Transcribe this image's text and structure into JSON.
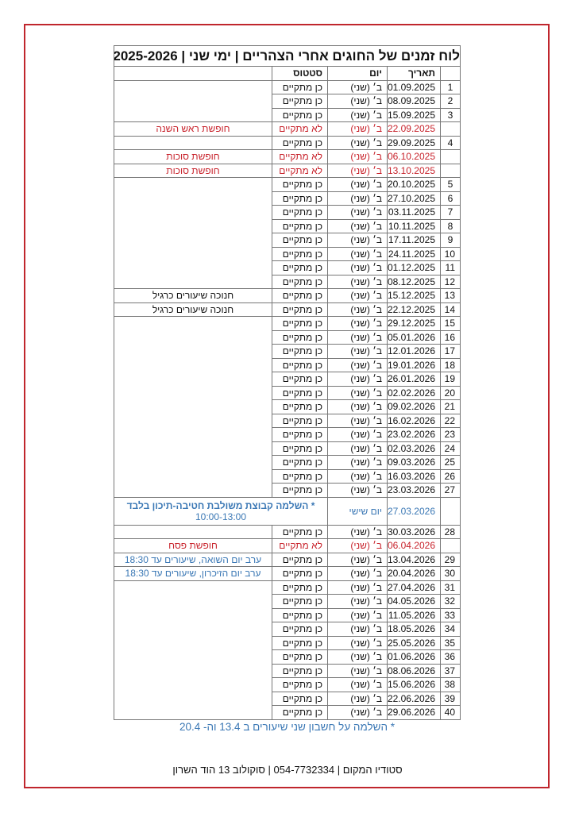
{
  "title": "לוח זמנים של החוגים אחרי הצהריים | ימי שני | 2025-2026",
  "headers": {
    "num": "",
    "date": "תאריך",
    "day": "יום",
    "status": "סטטוס",
    "notes": ""
  },
  "colors": {
    "cancelled": "#c8232c",
    "info": "#3b78b5",
    "frame": "#c0262d"
  },
  "rows": [
    {
      "num": "1",
      "date": "01.09.2025",
      "day": "ב׳ (שני)",
      "status": "כן מתקיים",
      "note": ""
    },
    {
      "num": "2",
      "date": "08.09.2025",
      "day": "ב׳ (שני)",
      "status": "כן מתקיים",
      "note": ""
    },
    {
      "num": "3",
      "date": "15.09.2025",
      "day": "ב׳ (שני)",
      "status": "כן מתקיים",
      "note": ""
    },
    {
      "num": "",
      "date": "22.09.2025",
      "day": "ב׳ (שני)",
      "status": "לא מתקיים",
      "note": "חופשת ראש השנה",
      "type": "cancelled"
    },
    {
      "num": "4",
      "date": "29.09.2025",
      "day": "ב׳ (שני)",
      "status": "כן מתקיים",
      "note": ""
    },
    {
      "num": "",
      "date": "06.10.2025",
      "day": "ב׳ (שני)",
      "status": "לא מתקיים",
      "note": "חופשת סוכות",
      "type": "cancelled"
    },
    {
      "num": "",
      "date": "13.10.2025",
      "day": "ב׳ (שני)",
      "status": "לא מתקיים",
      "note": "חופשת סוכות",
      "type": "cancelled"
    },
    {
      "num": "5",
      "date": "20.10.2025",
      "day": "ב׳ (שני)",
      "status": "כן מתקיים",
      "note": ""
    },
    {
      "num": "6",
      "date": "27.10.2025",
      "day": "ב׳ (שני)",
      "status": "כן מתקיים",
      "note": ""
    },
    {
      "num": "7",
      "date": "03.11.2025",
      "day": "ב׳ (שני)",
      "status": "כן מתקיים",
      "note": ""
    },
    {
      "num": "8",
      "date": "10.11.2025",
      "day": "ב׳ (שני)",
      "status": "כן מתקיים",
      "note": ""
    },
    {
      "num": "9",
      "date": "17.11.2025",
      "day": "ב׳ (שני)",
      "status": "כן מתקיים",
      "note": ""
    },
    {
      "num": "10",
      "date": "24.11.2025",
      "day": "ב׳ (שני)",
      "status": "כן מתקיים",
      "note": ""
    },
    {
      "num": "11",
      "date": "01.12.2025",
      "day": "ב׳ (שני)",
      "status": "כן מתקיים",
      "note": ""
    },
    {
      "num": "12",
      "date": "08.12.2025",
      "day": "ב׳ (שני)",
      "status": "כן מתקיים",
      "note": ""
    },
    {
      "num": "13",
      "date": "15.12.2025",
      "day": "ב׳ (שני)",
      "status": "כן מתקיים",
      "note": "חנוכה שיעורים כרגיל"
    },
    {
      "num": "14",
      "date": "22.12.2025",
      "day": "ב׳ (שני)",
      "status": "כן מתקיים",
      "note": "חנוכה שיעורים כרגיל"
    },
    {
      "num": "15",
      "date": "29.12.2025",
      "day": "ב׳ (שני)",
      "status": "כן מתקיים",
      "note": ""
    },
    {
      "num": "16",
      "date": "05.01.2026",
      "day": "ב׳ (שני)",
      "status": "כן מתקיים",
      "note": ""
    },
    {
      "num": "17",
      "date": "12.01.2026",
      "day": "ב׳ (שני)",
      "status": "כן מתקיים",
      "note": ""
    },
    {
      "num": "18",
      "date": "19.01.2026",
      "day": "ב׳ (שני)",
      "status": "כן מתקיים",
      "note": ""
    },
    {
      "num": "19",
      "date": "26.01.2026",
      "day": "ב׳ (שני)",
      "status": "כן מתקיים",
      "note": ""
    },
    {
      "num": "20",
      "date": "02.02.2026",
      "day": "ב׳ (שני)",
      "status": "כן מתקיים",
      "note": ""
    },
    {
      "num": "21",
      "date": "09.02.2026",
      "day": "ב׳ (שני)",
      "status": "כן מתקיים",
      "note": ""
    },
    {
      "num": "22",
      "date": "16.02.2026",
      "day": "ב׳ (שני)",
      "status": "כן מתקיים",
      "note": ""
    },
    {
      "num": "23",
      "date": "23.02.2026",
      "day": "ב׳ (שני)",
      "status": "כן מתקיים",
      "note": ""
    },
    {
      "num": "24",
      "date": "02.03.2026",
      "day": "ב׳ (שני)",
      "status": "כן מתקיים",
      "note": ""
    },
    {
      "num": "25",
      "date": "09.03.2026",
      "day": "ב׳ (שני)",
      "status": "כן מתקיים",
      "note": ""
    },
    {
      "num": "26",
      "date": "16.03.2026",
      "day": "ב׳ (שני)",
      "status": "כן מתקיים",
      "note": ""
    },
    {
      "num": "27",
      "date": "23.03.2026",
      "day": "ב׳ (שני)",
      "status": "כן מתקיים",
      "note": ""
    },
    {
      "num": "",
      "date": "27.03.2026",
      "day": "יום שישי",
      "status": "",
      "note": "* השלמה קבוצת משולבת חטיבה-תיכון בלבד",
      "note_time": "10:00-13:00",
      "type": "special"
    },
    {
      "num": "28",
      "date": "30.03.2026",
      "day": "ב׳ (שני)",
      "status": "כן מתקיים",
      "note": ""
    },
    {
      "num": "",
      "date": "06.04.2026",
      "day": "ב׳ (שני)",
      "status": "לא מתקיים",
      "note": "חופשת פסח",
      "type": "cancelled"
    },
    {
      "num": "29",
      "date": "13.04.2026",
      "day": "ב׳ (שני)",
      "status": "כן מתקיים",
      "note": "ערב יום השואה, שיעורים עד 18:30",
      "type": "info"
    },
    {
      "num": "30",
      "date": "20.04.2026",
      "day": "ב׳ (שני)",
      "status": "כן מתקיים",
      "note": "ערב יום הזיכרון, שיעורים עד 18:30",
      "type": "info"
    },
    {
      "num": "31",
      "date": "27.04.2026",
      "day": "ב׳ (שני)",
      "status": "כן מתקיים",
      "note": ""
    },
    {
      "num": "32",
      "date": "04.05.2026",
      "day": "ב׳ (שני)",
      "status": "כן מתקיים",
      "note": ""
    },
    {
      "num": "33",
      "date": "11.05.2026",
      "day": "ב׳ (שני)",
      "status": "כן מתקיים",
      "note": ""
    },
    {
      "num": "34",
      "date": "18.05.2026",
      "day": "ב׳ (שני)",
      "status": "כן מתקיים",
      "note": ""
    },
    {
      "num": "35",
      "date": "25.05.2026",
      "day": "ב׳ (שני)",
      "status": "כן מתקיים",
      "note": ""
    },
    {
      "num": "36",
      "date": "01.06.2026",
      "day": "ב׳ (שני)",
      "status": "כן מתקיים",
      "note": ""
    },
    {
      "num": "37",
      "date": "08.06.2026",
      "day": "ב׳ (שני)",
      "status": "כן מתקיים",
      "note": ""
    },
    {
      "num": "38",
      "date": "15.06.2026",
      "day": "ב׳ (שני)",
      "status": "כן מתקיים",
      "note": ""
    },
    {
      "num": "39",
      "date": "22.06.2026",
      "day": "ב׳ (שני)",
      "status": "כן מתקיים",
      "note": ""
    },
    {
      "num": "40",
      "date": "29.06.2026",
      "day": "ב׳ (שני)",
      "status": "כן מתקיים",
      "note": ""
    }
  ],
  "footnote": "* השלמה על חשבון שני שיעורים ב 13.4 וה- 20.4",
  "footer": "סטודיו המקום  |  054-7732334  |  סוקולוב 13 הוד השרון"
}
